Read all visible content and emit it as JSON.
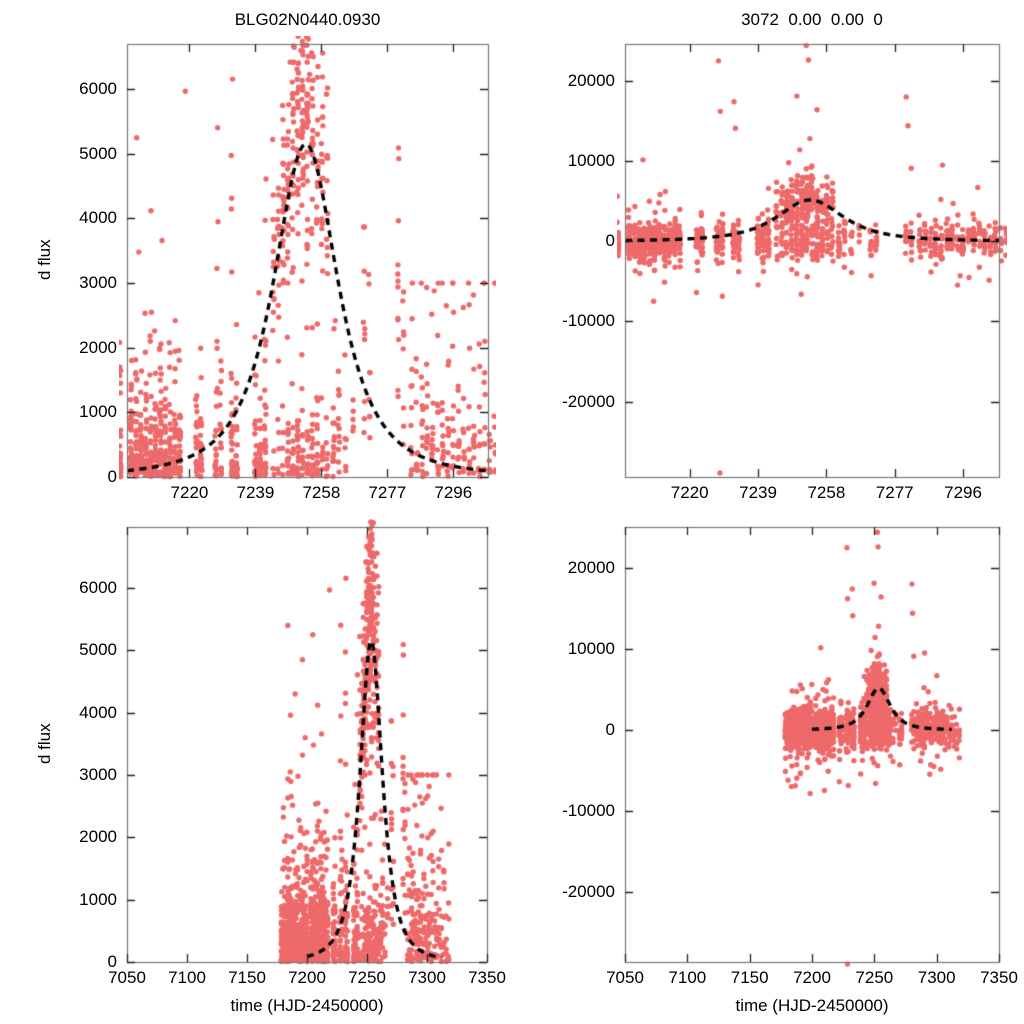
{
  "figure": {
    "background": "#ffffff",
    "frame_color": "#777777",
    "tick_color": "#222222",
    "point_color": "#ee6a6a",
    "curve_color": "#000000"
  },
  "titles": {
    "left": "BLG02N0440.0930",
    "right": "3072  0.00  0.00  0"
  },
  "axis_labels": {
    "flux": "d flux",
    "time": "time (HJD-2450000)"
  },
  "chart_data": {
    "type": "scatter",
    "title": "BLG02N0440.0930",
    "legend": "none",
    "grid": false,
    "model_curve": {
      "shape": "microlensing_peak",
      "t0": 7253.5,
      "peak": 5150,
      "width_days": 14.3,
      "exponent": 1.5,
      "domain": [
        7200,
        7312
      ],
      "style": "dashed"
    },
    "datasets": {
      "seed": 42,
      "clusters": [
        [
          7178.8,
          22,
          "b",
          480
        ],
        [
          7180.2,
          28,
          "b",
          520
        ],
        [
          7181.4,
          30,
          "b",
          500
        ],
        [
          7182.8,
          26,
          "b",
          520
        ],
        [
          7184.1,
          30,
          "b",
          540
        ],
        [
          7185.3,
          28,
          "b",
          500
        ],
        [
          7186.6,
          30,
          "b",
          520
        ],
        [
          7188.0,
          26,
          "b",
          480
        ],
        [
          7189.2,
          24,
          "b",
          520
        ],
        [
          7190.6,
          28,
          "b",
          540
        ],
        [
          7192.0,
          30,
          "b",
          520
        ],
        [
          7193.3,
          28,
          "b",
          500
        ],
        [
          7194.6,
          26,
          "b",
          520
        ],
        [
          7196.0,
          28,
          "b",
          540
        ],
        [
          7197.3,
          26,
          "b",
          500
        ],
        [
          7198.7,
          28,
          "b",
          520
        ],
        [
          7200.0,
          30,
          "b",
          540
        ],
        [
          7203.2,
          34,
          "b",
          520
        ],
        [
          7204.6,
          36,
          "b",
          540
        ],
        [
          7206.0,
          36,
          "b",
          520
        ],
        [
          7207.4,
          34,
          "b",
          540
        ],
        [
          7208.8,
          36,
          "b",
          520
        ],
        [
          7210.2,
          36,
          "b",
          540
        ],
        [
          7211.6,
          34,
          "b",
          520
        ],
        [
          7213.0,
          34,
          "b",
          500
        ],
        [
          7214.4,
          30,
          "b",
          520
        ],
        [
          7215.8,
          30,
          "b",
          480
        ],
        [
          7217.2,
          26,
          "b",
          460
        ],
        [
          7222.0,
          22,
          "b",
          460
        ],
        [
          7223.4,
          22,
          "b",
          480
        ],
        [
          7227.6,
          18,
          "b",
          440
        ],
        [
          7229.0,
          16,
          "b",
          440
        ],
        [
          7232.2,
          22,
          "b",
          460
        ],
        [
          7233.6,
          16,
          "b",
          440
        ],
        [
          7239.0,
          24,
          "b",
          480
        ],
        [
          7240.4,
          22,
          "b",
          460
        ],
        [
          7241.8,
          22,
          "b",
          480
        ],
        [
          7244.2,
          16,
          "p",
          0
        ],
        [
          7245.6,
          20,
          "p",
          0
        ],
        [
          7247.0,
          28,
          "p",
          0
        ],
        [
          7248.4,
          34,
          "p",
          0
        ],
        [
          7249.8,
          40,
          "p",
          0
        ],
        [
          7251.2,
          42,
          "p",
          0
        ],
        [
          7252.6,
          44,
          "p",
          0
        ],
        [
          7254.0,
          42,
          "p",
          0
        ],
        [
          7255.4,
          36,
          "p",
          0
        ],
        [
          7256.8,
          30,
          "p",
          0
        ],
        [
          7258.2,
          26,
          "p",
          0
        ],
        [
          7259.6,
          20,
          "p",
          0
        ],
        [
          7261.5,
          14,
          "b",
          560
        ],
        [
          7263.0,
          12,
          "b",
          540
        ],
        [
          7265.0,
          6,
          "b",
          600
        ],
        [
          7267.0,
          5,
          "b",
          560
        ],
        [
          7228.0,
          6,
          "s",
          6300
        ],
        [
          7232.2,
          8,
          "s",
          6400
        ],
        [
          7241.8,
          6,
          "s",
          6600
        ],
        [
          7270.3,
          10,
          "s",
          4100
        ],
        [
          7271.8,
          8,
          "s",
          3400
        ],
        [
          7280.2,
          12,
          "s",
          5300
        ],
        [
          7281.6,
          8,
          "s",
          3000
        ],
        [
          7284.0,
          12,
          "c",
          760
        ],
        [
          7285.5,
          12,
          "c",
          740
        ],
        [
          7287.0,
          12,
          "c",
          760
        ],
        [
          7288.5,
          12,
          "c",
          740
        ],
        [
          7290.0,
          12,
          "c",
          760
        ],
        [
          7291.5,
          12,
          "c",
          740
        ],
        [
          7293.0,
          12,
          "c",
          760
        ],
        [
          7294.5,
          12,
          "c",
          740
        ],
        [
          7296.0,
          12,
          "c",
          760
        ],
        [
          7297.5,
          10,
          "c",
          720
        ],
        [
          7299.0,
          10,
          "c",
          740
        ],
        [
          7300.5,
          10,
          "c",
          720
        ],
        [
          7302.0,
          10,
          "c",
          740
        ],
        [
          7303.5,
          10,
          "c",
          720
        ],
        [
          7305.0,
          10,
          "c",
          740
        ],
        [
          7306.5,
          8,
          "c",
          700
        ],
        [
          7308.0,
          8,
          "c",
          720
        ],
        [
          7310.0,
          8,
          "c",
          700
        ],
        [
          7312.0,
          8,
          "c",
          720
        ],
        [
          7314.0,
          8,
          "c",
          700
        ],
        [
          7316.0,
          6,
          "c",
          680
        ],
        [
          7318.0,
          6,
          "c",
          700
        ]
      ],
      "outliers_flux": [
        [
          7204.8,
          5250
        ],
        [
          7205.4,
          3480
        ],
        [
          7208.9,
          4120
        ],
        [
          7212.1,
          3660
        ],
        [
          7218.8,
          5970
        ],
        [
          7184.0,
          5400
        ],
        [
          7196.2,
          4850
        ],
        [
          7186.3,
          3960
        ],
        [
          7190.1,
          4300
        ],
        [
          7198.5,
          3600
        ],
        [
          7249.0,
          6420
        ],
        [
          7250.2,
          6650
        ],
        [
          7251.0,
          6310
        ],
        [
          7252.1,
          6600
        ],
        [
          7252.7,
          6950
        ],
        [
          7253.2,
          7060
        ],
        [
          7253.8,
          6680
        ],
        [
          7254.6,
          6230
        ],
        [
          7255.2,
          6560
        ],
        [
          7186.0,
          3050
        ],
        [
          7192.5,
          2980
        ],
        [
          7196.3,
          3320
        ],
        [
          7240.0,
          2850
        ],
        [
          7262.0,
          2420
        ],
        [
          7290.5,
          2880
        ],
        [
          7294.0,
          2650
        ]
      ],
      "outliers_resid": [
        [
          7207.0,
          10150
        ],
        [
          7228.0,
          22500
        ],
        [
          7228.5,
          16200
        ],
        [
          7232.3,
          17400
        ],
        [
          7232.7,
          14100
        ],
        [
          7241.9,
          6600
        ],
        [
          7249.8,
          18100
        ],
        [
          7252.4,
          24400
        ],
        [
          7253.0,
          22600
        ],
        [
          7255.4,
          16400
        ],
        [
          7247.5,
          9800
        ],
        [
          7250.6,
          11400
        ],
        [
          7253.4,
          12800
        ],
        [
          7251.0,
          -6600
        ],
        [
          7210.2,
          -3600
        ],
        [
          7213.0,
          -5100
        ],
        [
          7186.6,
          -6900
        ],
        [
          7183.5,
          -7000
        ],
        [
          7190.6,
          -5400
        ],
        [
          7180.8,
          -6200
        ],
        [
          7265.0,
          -3900
        ],
        [
          7295.2,
          -4300
        ],
        [
          7228.4,
          -28900
        ],
        [
          7280.2,
          18000
        ],
        [
          7280.7,
          14400
        ],
        [
          7281.6,
          9100
        ],
        [
          7290.3,
          9500
        ],
        [
          7300.1,
          6700
        ]
      ]
    },
    "panels": [
      {
        "id": "top-left",
        "title": "BLG02N0440.0930",
        "ylabel": "d flux",
        "xlabel": "",
        "dataset": "flux_points",
        "xlim": [
          7202,
          7306
        ],
        "ylim": [
          0,
          6700
        ],
        "xticks": [
          7220,
          7239,
          7258,
          7277,
          7296
        ],
        "yticks": [
          0,
          1000,
          2000,
          3000,
          4000,
          5000,
          6000
        ]
      },
      {
        "id": "top-right",
        "title": "3072  0.00  0.00  0",
        "ylabel": "",
        "xlabel": "",
        "dataset": "residual_points",
        "xlim": [
          7202,
          7306
        ],
        "ylim": [
          -29400,
          24600
        ],
        "xticks": [
          7220,
          7239,
          7258,
          7277,
          7296
        ],
        "yticks": [
          -20000,
          -10000,
          0,
          10000,
          20000
        ]
      },
      {
        "id": "bottom-left",
        "title": "",
        "ylabel": "d flux",
        "xlabel": "time (HJD-2450000)",
        "dataset": "flux_points",
        "xlim": [
          7050,
          7350
        ],
        "ylim": [
          0,
          6980
        ],
        "xticks": [
          7050,
          7100,
          7150,
          7200,
          7250,
          7300,
          7350
        ],
        "yticks": [
          0,
          1000,
          2000,
          3000,
          4000,
          5000,
          6000
        ]
      },
      {
        "id": "bottom-right",
        "title": "",
        "ylabel": "",
        "xlabel": "time (HJD-2450000)",
        "dataset": "residual_points",
        "xlim": [
          7050,
          7350
        ],
        "ylim": [
          -28650,
          25050
        ],
        "xticks": [
          7050,
          7100,
          7150,
          7200,
          7250,
          7300,
          7350
        ],
        "yticks": [
          -20000,
          -10000,
          0,
          10000,
          20000
        ]
      }
    ]
  }
}
